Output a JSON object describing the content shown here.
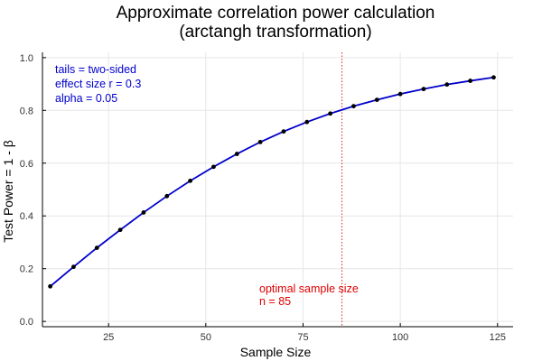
{
  "chart_data": {
    "type": "line",
    "title": "Approximate correlation power calculation",
    "subtitle": "(arctangh transformation)",
    "xlabel": "Sample Size",
    "ylabel": "Test Power = 1 -  β",
    "xlim": [
      8,
      129
    ],
    "ylim": [
      -0.02,
      1.02
    ],
    "xticks": [
      25,
      50,
      75,
      100,
      125
    ],
    "yticks": [
      0.0,
      0.2,
      0.4,
      0.6,
      0.8,
      1.0
    ],
    "ytick_labels": [
      "0.0",
      "0.2",
      "0.4",
      "0.6",
      "0.8",
      "1.0"
    ],
    "grid": true,
    "series": [
      {
        "color": "#0000cc",
        "marker_color": "#000000",
        "x": [
          10,
          16,
          22,
          28,
          34,
          40,
          46,
          52,
          58,
          64,
          70,
          76,
          82,
          88,
          94,
          100,
          106,
          112,
          118,
          124
        ],
        "y": [
          0.133,
          0.207,
          0.279,
          0.347,
          0.413,
          0.475,
          0.533,
          0.586,
          0.635,
          0.68,
          0.72,
          0.756,
          0.788,
          0.816,
          0.84,
          0.862,
          0.881,
          0.898,
          0.912,
          0.925
        ]
      }
    ],
    "reference_line": {
      "x": 85,
      "color": "#e02020",
      "style": "dotted"
    },
    "annotations": {
      "params": {
        "color": "#0000cc",
        "lines": [
          "tails = two-sided",
          "effect size r = 0.3",
          "alpha = 0.05"
        ]
      },
      "optimal": {
        "color": "#e00000",
        "lines": [
          "optimal sample size",
          "n = 85"
        ]
      }
    }
  }
}
